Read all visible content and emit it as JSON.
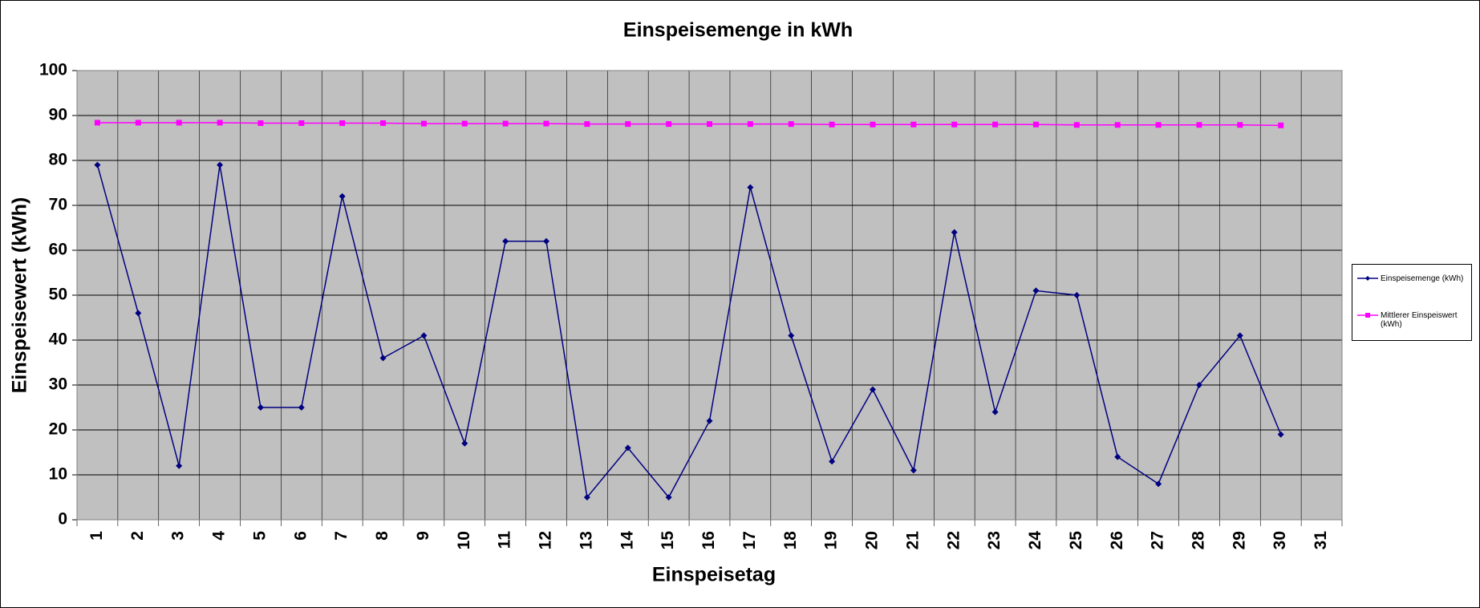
{
  "chart_data": {
    "type": "line",
    "title": "Einspeisemenge in kWh",
    "x_label": "Einspeisetag",
    "y_label": "Einspeisewert  (kWh)",
    "categories": [
      "1",
      "2",
      "3",
      "4",
      "5",
      "6",
      "7",
      "8",
      "9",
      "10",
      "11",
      "12",
      "13",
      "14",
      "15",
      "16",
      "17",
      "18",
      "19",
      "20",
      "21",
      "22",
      "23",
      "24",
      "25",
      "26",
      "27",
      "28",
      "29",
      "30",
      "31"
    ],
    "series": [
      {
        "name": "Einspeisemenge (kWh)",
        "color": "#000080",
        "marker": "diamond",
        "values": [
          79,
          46,
          12,
          79,
          25,
          25,
          72,
          36,
          41,
          17,
          62,
          62,
          5,
          16,
          5,
          22,
          74,
          41,
          13,
          29,
          11,
          64,
          24,
          51,
          50,
          14,
          8,
          30,
          41,
          19,
          null
        ]
      },
      {
        "name": "Mittlerer Einspeiswert (kWh)",
        "color": "#ff00ff",
        "marker": "square",
        "values": [
          88.4,
          88.4,
          88.4,
          88.4,
          88.3,
          88.3,
          88.3,
          88.3,
          88.2,
          88.2,
          88.2,
          88.2,
          88.1,
          88.1,
          88.1,
          88.1,
          88.1,
          88.1,
          88.0,
          88.0,
          88.0,
          88.0,
          88.0,
          88.0,
          87.9,
          87.9,
          87.9,
          87.9,
          87.9,
          87.8,
          null
        ]
      }
    ],
    "ylim": [
      0,
      100
    ],
    "yticks": [
      0,
      10,
      20,
      30,
      40,
      50,
      60,
      70,
      80,
      90,
      100
    ],
    "grid": true,
    "legend": "right"
  }
}
